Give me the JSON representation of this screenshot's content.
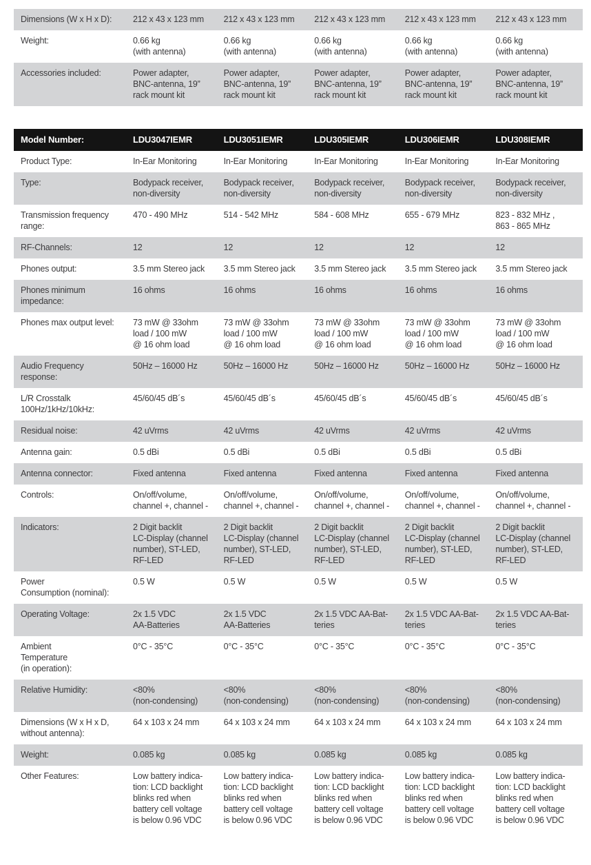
{
  "colors": {
    "header_bg": "#141414",
    "header_text": "#ffffff",
    "row_shade": "#d3d4d6",
    "body_text": "#3b3a3c"
  },
  "top_table": {
    "rows": [
      {
        "label": "Dimensions (W x H x D):",
        "shaded": true,
        "values": [
          "212 x 43 x 123 mm",
          "212 x 43 x 123 mm",
          "212 x 43 x 123 mm",
          "212 x 43 x 123 mm",
          "212 x 43 x 123 mm"
        ]
      },
      {
        "label": "Weight:",
        "shaded": false,
        "values": [
          "0.66 kg\n(with antenna)",
          "0.66 kg\n(with antenna)",
          "0.66 kg\n(with antenna)",
          "0.66 kg\n(with antenna)",
          "0.66 kg\n(with antenna)"
        ]
      },
      {
        "label": "Accessories included:",
        "shaded": true,
        "values": [
          "Power adapter,\nBNC-antenna, 19”\nrack mount kit",
          "Power adapter,\nBNC-antenna, 19”\nrack mount kit",
          "Power adapter,\nBNC-antenna, 19”\nrack mount kit",
          "Power adapter,\nBNC-antenna, 19”\nrack mount kit",
          "Power adapter,\nBNC-antenna, 19”\nrack mount kit"
        ]
      }
    ]
  },
  "spec_table": {
    "header": {
      "label": "Model Number:",
      "models": [
        "LDU3047IEMR",
        "LDU3051IEMR",
        "LDU305IEMR",
        "LDU306IEMR",
        "LDU308IEMR"
      ]
    },
    "rows": [
      {
        "label": "Product Type:",
        "shaded": false,
        "values": [
          "In-Ear Monitoring",
          "In-Ear Monitoring",
          "In-Ear Monitoring",
          "In-Ear Monitoring",
          "In-Ear Monitoring"
        ]
      },
      {
        "label": "Type:",
        "shaded": true,
        "values": [
          "Bodypack receiver,\nnon-diversity",
          "Bodypack receiver,\nnon-diversity",
          "Bodypack receiver,\nnon-diversity",
          "Bodypack receiver,\nnon-diversity",
          "Bodypack receiver,\nnon-diversity"
        ]
      },
      {
        "label": "Transmission frequency\nrange:",
        "shaded": false,
        "values": [
          "470 - 490 MHz",
          "514 - 542 MHz",
          "584 - 608 MHz",
          "655 - 679 MHz",
          "823 - 832 MHz ,\n863 - 865 MHz"
        ]
      },
      {
        "label": "RF-Channels:",
        "shaded": true,
        "values": [
          "12",
          "12",
          "12",
          "12",
          "12"
        ]
      },
      {
        "label": "Phones output:",
        "shaded": false,
        "values": [
          "3.5 mm Stereo jack",
          "3.5 mm Stereo jack",
          "3.5 mm Stereo jack",
          "3.5 mm Stereo jack",
          "3.5 mm Stereo jack"
        ]
      },
      {
        "label": "Phones minimum\nimpedance:",
        "shaded": true,
        "values": [
          "16 ohms",
          "16 ohms",
          "16 ohms",
          "16 ohms",
          "16 ohms"
        ]
      },
      {
        "label": "Phones max output level:",
        "shaded": false,
        "values": [
          "73 mW @ 33ohm\nload / 100 mW\n@ 16 ohm load",
          "73 mW @ 33ohm\nload / 100 mW\n@ 16 ohm load",
          "73 mW @ 33ohm\nload / 100 mW\n@ 16 ohm load",
          "73 mW @ 33ohm\nload / 100 mW\n@ 16 ohm load",
          "73 mW @ 33ohm\nload / 100 mW\n@ 16 ohm load"
        ]
      },
      {
        "label": "Audio Frequency\nresponse:",
        "shaded": true,
        "values": [
          "50Hz – 16000 Hz",
          "50Hz – 16000 Hz",
          "50Hz – 16000 Hz",
          "50Hz – 16000 Hz",
          "50Hz – 16000 Hz"
        ]
      },
      {
        "label": "L/R Crosstalk\n100Hz/1kHz/10kHz:",
        "shaded": false,
        "values": [
          "45/60/45 dB´s",
          "45/60/45 dB´s",
          "45/60/45 dB´s",
          "45/60/45 dB´s",
          "45/60/45 dB´s"
        ]
      },
      {
        "label": "Residual noise:",
        "shaded": true,
        "values": [
          "42 uVrms",
          "42 uVrms",
          "42 uVrms",
          "42 uVrms",
          "42 uVrms"
        ]
      },
      {
        "label": "Antenna gain:",
        "shaded": false,
        "values": [
          "0.5 dBi",
          "0.5 dBi",
          "0.5 dBi",
          "0.5 dBi",
          "0.5 dBi"
        ]
      },
      {
        "label": "Antenna connector:",
        "shaded": true,
        "values": [
          "Fixed antenna",
          "Fixed antenna",
          "Fixed antenna",
          "Fixed antenna",
          "Fixed antenna"
        ]
      },
      {
        "label": "Controls:",
        "shaded": false,
        "values": [
          "On/off/volume,\nchannel +, channel -",
          "On/off/volume,\nchannel +, channel -",
          "On/off/volume,\nchannel +, channel -",
          "On/off/volume,\nchannel +, channel -",
          "On/off/volume,\nchannel +, channel -"
        ]
      },
      {
        "label": "Indicators:",
        "shaded": true,
        "values": [
          "2 Digit backlit\nLC-Display (channel\nnumber), ST-LED,\nRF-LED",
          "2 Digit backlit\nLC-Display (channel\nnumber), ST-LED,\nRF-LED",
          "2 Digit backlit\nLC-Display (channel\nnumber), ST-LED,\nRF-LED",
          "2 Digit backlit\nLC-Display (channel\nnumber), ST-LED,\nRF-LED",
          "2 Digit backlit\nLC-Display (channel\nnumber), ST-LED,\nRF-LED"
        ]
      },
      {
        "label": "Power\nConsumption (nominal):",
        "shaded": false,
        "values": [
          "0.5 W",
          "0.5 W",
          "0.5 W",
          "0.5 W",
          "0.5 W"
        ]
      },
      {
        "label": "Operating Voltage:",
        "shaded": true,
        "values": [
          "2x 1.5 VDC\nAA-Batteries",
          "2x 1.5 VDC\nAA-Batteries",
          "2x 1.5 VDC AA-Bat-\nteries",
          "2x 1.5 VDC AA-Bat-\nteries",
          "2x 1.5 VDC AA-Bat-\nteries"
        ]
      },
      {
        "label": "Ambient\nTemperature\n(in operation):",
        "shaded": false,
        "values": [
          "0°C - 35°C",
          "0°C - 35°C",
          "0°C - 35°C",
          "0°C - 35°C",
          "0°C - 35°C"
        ]
      },
      {
        "label": "Relative Humidity:",
        "shaded": true,
        "values": [
          "<80%\n(non-condensing)",
          "<80%\n(non-condensing)",
          "<80%\n(non-condensing)",
          "<80%\n(non-condensing)",
          "<80%\n(non-condensing)"
        ]
      },
      {
        "label": "Dimensions (W x H x D,\nwithout antenna):",
        "shaded": false,
        "values": [
          "64 x 103 x 24 mm",
          "64 x 103 x 24 mm",
          "64 x 103 x 24 mm",
          "64 x 103 x 24 mm",
          "64 x 103 x 24 mm"
        ]
      },
      {
        "label": "Weight:",
        "shaded": true,
        "values": [
          "0.085 kg",
          "0.085 kg",
          "0.085 kg",
          "0.085 kg",
          "0.085 kg"
        ]
      },
      {
        "label": "Other Features:",
        "shaded": false,
        "values": [
          "Low battery indica-\ntion: LCD backlight\nblinks red when\nbattery cell voltage\nis below 0.96 VDC",
          "Low battery indica-\ntion: LCD backlight\nblinks red when\nbattery cell voltage\nis below 0.96 VDC",
          "Low battery indica-\ntion: LCD backlight\nblinks red when\nbattery cell voltage\nis below 0.96 VDC",
          "Low battery indica-\ntion: LCD backlight\nblinks red when\nbattery cell voltage\nis below 0.96 VDC",
          "Low battery indica-\ntion: LCD backlight\nblinks red when\nbattery cell voltage\nis below 0.96 VDC"
        ]
      }
    ]
  }
}
